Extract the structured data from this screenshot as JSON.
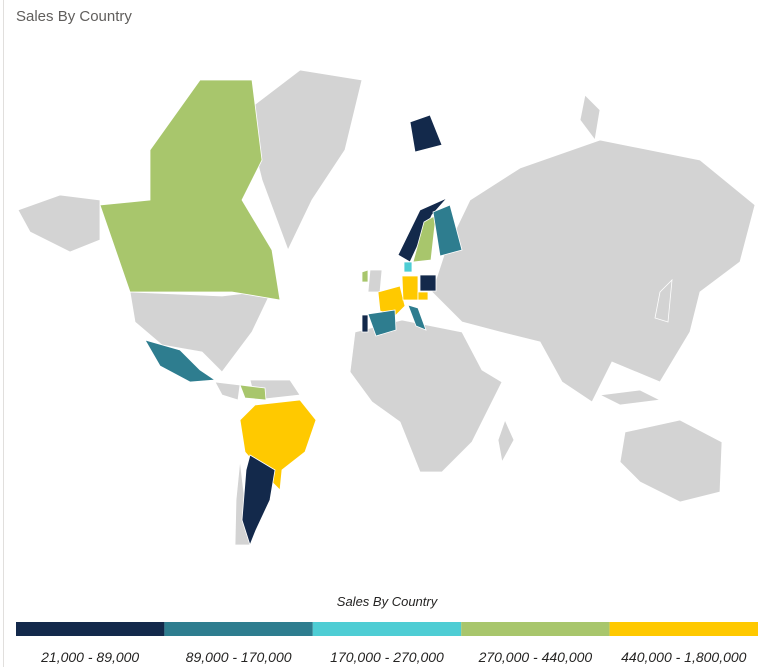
{
  "title": "Sales By Country",
  "legend": {
    "title": "Sales By Country",
    "items": [
      {
        "label": "21,000 - 89,000",
        "color": "#13294b"
      },
      {
        "label": "89,000 - 170,000",
        "color": "#2e7d8f"
      },
      {
        "label": "170,000 - 270,000",
        "color": "#4ecdd4"
      },
      {
        "label": "270,000 - 440,000",
        "color": "#a8c66c"
      },
      {
        "label": "440,000 - 1,800,000",
        "color": "#ffc900"
      }
    ]
  }
}
